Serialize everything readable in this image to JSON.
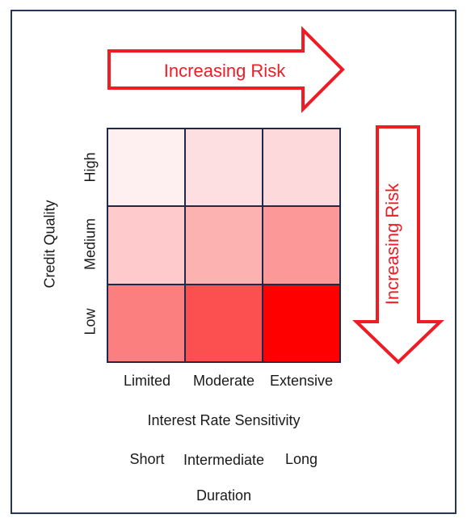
{
  "arrows": {
    "horizontal_label": "Increasing Risk",
    "vertical_label": "Increasing Risk",
    "color": "#ee1c25"
  },
  "matrix": {
    "y_axis_title": "Credit Quality",
    "rows": [
      "High",
      "Medium",
      "Low"
    ],
    "columns": [
      "Limited",
      "Moderate",
      "Extensive"
    ],
    "x_axis_title": "Interest Rate Sensitivity",
    "duration_labels": [
      "Short",
      "Intermediate",
      "Long"
    ],
    "duration_title": "Duration",
    "cell_colors": [
      [
        "#fef0f1",
        "#fedfe1",
        "#fed9db"
      ],
      [
        "#fecacb",
        "#fdb2b2",
        "#fc9897"
      ],
      [
        "#fc7f7f",
        "#fc5050",
        "#ff0000"
      ]
    ]
  }
}
